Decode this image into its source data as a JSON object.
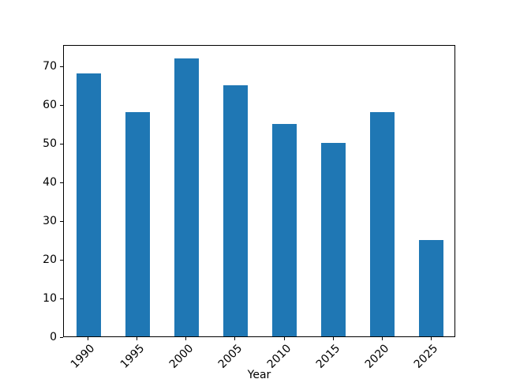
{
  "figure": {
    "background": "#ffffff",
    "axis_color": "#000000",
    "text_color": "#000000"
  },
  "chart_data": {
    "type": "bar",
    "title": "",
    "xlabel": "Year",
    "ylabel": "",
    "categories": [
      "1990",
      "1995",
      "2000",
      "2005",
      "2010",
      "2015",
      "2020",
      "2025"
    ],
    "values": [
      68,
      58,
      72,
      65,
      55,
      50,
      58,
      25
    ],
    "bar_color": "#1f77b4",
    "ylim": [
      0,
      75.6
    ],
    "yticks": [
      0,
      10,
      20,
      30,
      40,
      50,
      60,
      70
    ],
    "xtick_rotation": 45,
    "grid": false,
    "legend_position": "none"
  }
}
